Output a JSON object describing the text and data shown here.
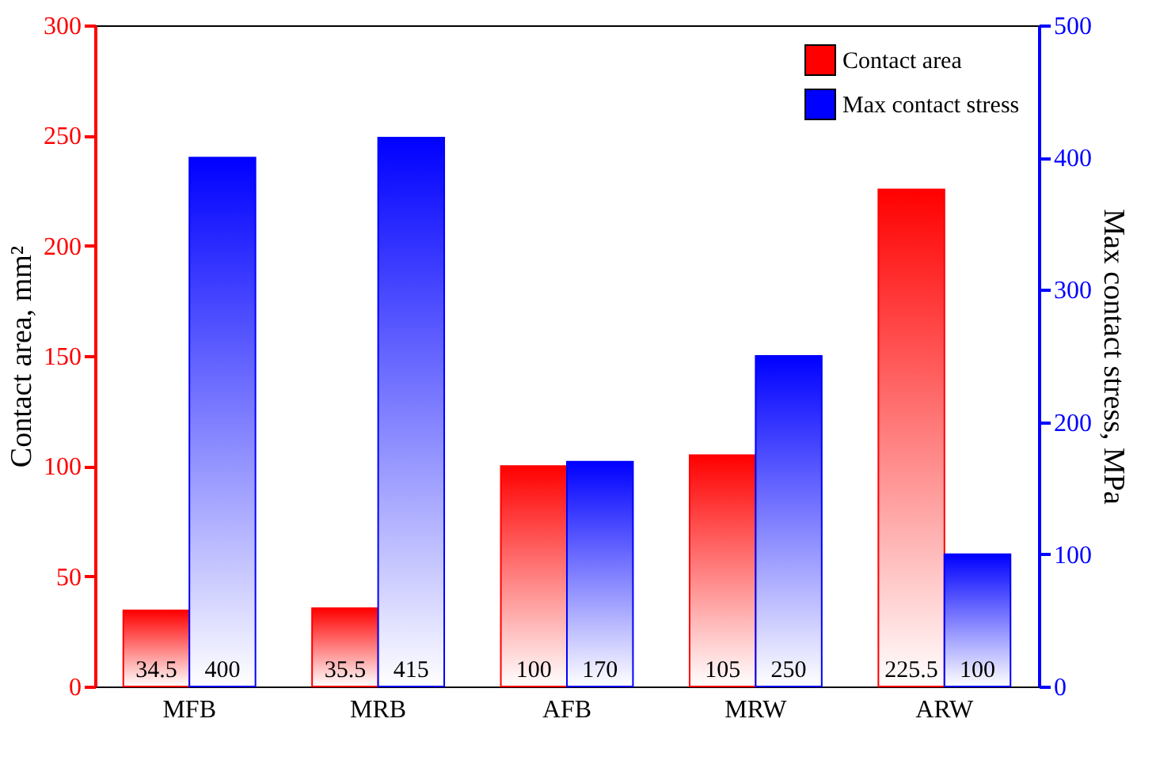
{
  "chart_data": {
    "type": "bar",
    "categories": [
      "MFB",
      "MRB",
      "AFB",
      "MRW",
      "ARW"
    ],
    "ylabel": "Contact area, mm²",
    "y2label": "Max contact stress, MPa",
    "series": [
      {
        "name": "Contact area",
        "color": "#ff0000",
        "values": [
          34.5,
          35.5,
          100,
          105,
          225.5
        ]
      },
      {
        "name": "Max contact stress",
        "color": "#0000ff",
        "axis": "y2",
        "values": [
          400,
          415,
          170,
          250,
          100
        ]
      }
    ],
    "ylim": [
      0,
      300
    ],
    "yticks": [
      0,
      50,
      100,
      150,
      200,
      250,
      300
    ],
    "y2lim": [
      0,
      500
    ],
    "y2ticks": [
      0,
      100,
      200,
      300,
      400,
      500
    ],
    "data_labels": true,
    "legend": "top right"
  }
}
